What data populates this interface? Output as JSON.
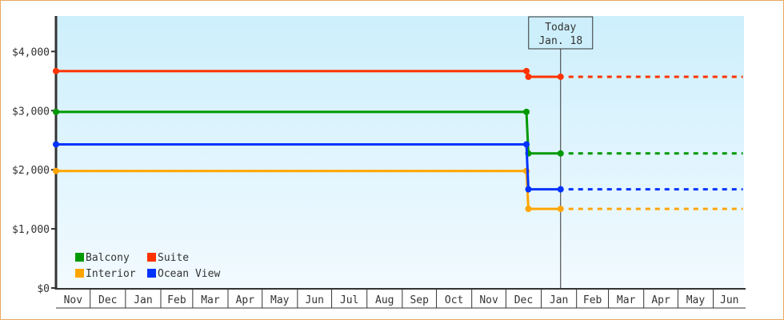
{
  "chart_data": {
    "type": "line",
    "title": "",
    "xlabel": "",
    "ylabel": "",
    "ylim": [
      0,
      4600
    ],
    "y_ticks": [
      0,
      1000,
      2000,
      3000,
      4000
    ],
    "y_tick_labels": [
      "$0",
      "$1,000",
      "$2,000",
      "$3,000",
      "$4,000"
    ],
    "x_tick_labels": [
      "Nov",
      "Dec",
      "Jan",
      "Feb",
      "Mar",
      "Apr",
      "May",
      "Jun",
      "Jul",
      "Aug",
      "Sep",
      "Oct",
      "Nov",
      "Dec",
      "Jan",
      "Feb",
      "Mar",
      "Apr",
      "May",
      "Jun"
    ],
    "grid": false,
    "legend_placement": "bottom-left",
    "today_marker": {
      "line1": "Today",
      "line2": "Jan. 18",
      "month": 14,
      "day": 18
    },
    "series": [
      {
        "name": "Balcony",
        "color": "#009900",
        "points": [
          {
            "month": 0,
            "day": 2,
            "value": 2979
          },
          {
            "month": 13,
            "day": 19,
            "value": 2979
          },
          {
            "month": 13,
            "day": 20,
            "value": 2276
          },
          {
            "month": 14,
            "day": 18,
            "value": 2276
          }
        ],
        "forecast": [
          {
            "month": 14,
            "day": 18,
            "value": 2276
          },
          {
            "month": 19,
            "day": 27,
            "value": 2276
          }
        ]
      },
      {
        "name": "Suite",
        "color": "#ff3300",
        "points": [
          {
            "month": 0,
            "day": 2,
            "value": 3669
          },
          {
            "month": 13,
            "day": 19,
            "value": 3669
          },
          {
            "month": 13,
            "day": 20,
            "value": 3572
          },
          {
            "month": 14,
            "day": 18,
            "value": 3572
          }
        ],
        "forecast": [
          {
            "month": 14,
            "day": 18,
            "value": 3572
          },
          {
            "month": 19,
            "day": 27,
            "value": 3572
          }
        ]
      },
      {
        "name": "Interior",
        "color": "#ffa500",
        "points": [
          {
            "month": 0,
            "day": 2,
            "value": 1979
          },
          {
            "month": 13,
            "day": 19,
            "value": 1979
          },
          {
            "month": 13,
            "day": 20,
            "value": 1338
          },
          {
            "month": 14,
            "day": 18,
            "value": 1338
          }
        ],
        "forecast": [
          {
            "month": 14,
            "day": 18,
            "value": 1338
          },
          {
            "month": 19,
            "day": 27,
            "value": 1338
          }
        ]
      },
      {
        "name": "Ocean View",
        "color": "#0033ff",
        "points": [
          {
            "month": 0,
            "day": 2,
            "value": 2429
          },
          {
            "month": 13,
            "day": 19,
            "value": 2429
          },
          {
            "month": 13,
            "day": 20,
            "value": 1669
          },
          {
            "month": 14,
            "day": 18,
            "value": 1669
          }
        ],
        "forecast": [
          {
            "month": 14,
            "day": 18,
            "value": 1669
          },
          {
            "month": 19,
            "day": 27,
            "value": 1669
          }
        ]
      }
    ]
  }
}
